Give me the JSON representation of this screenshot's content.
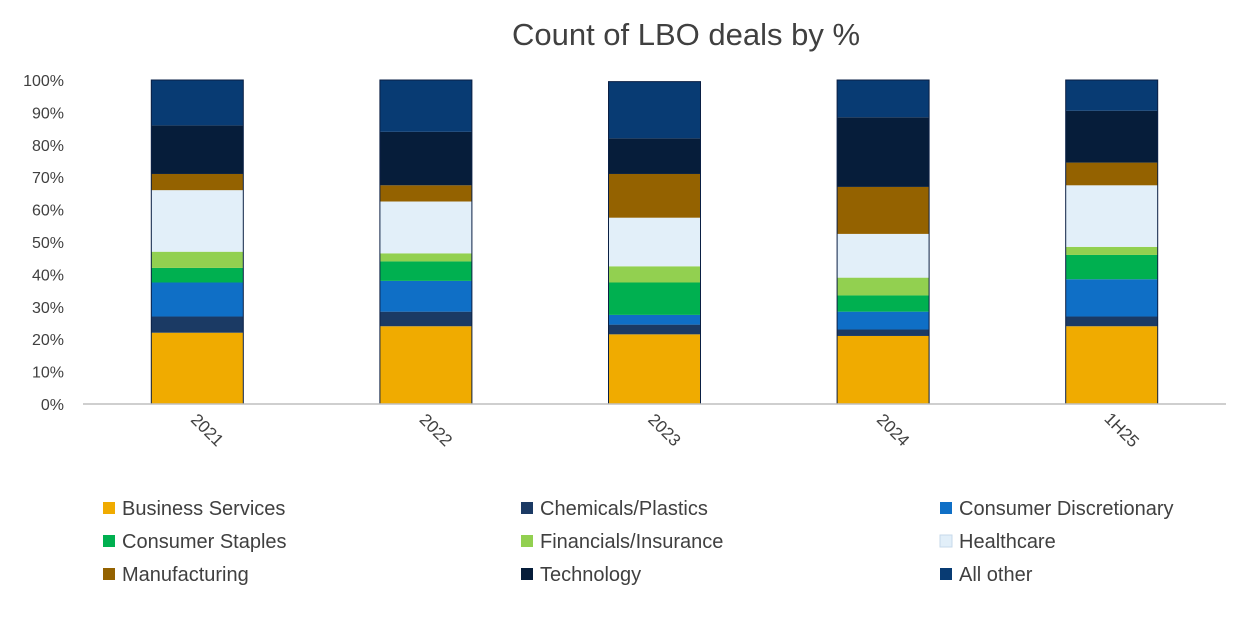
{
  "chart_data": {
    "type": "bar",
    "stacked": true,
    "title": "Count of LBO deals by %",
    "xlabel": "",
    "ylabel": "",
    "ylim": [
      0,
      100
    ],
    "yticks": [
      0,
      10,
      20,
      30,
      40,
      50,
      60,
      70,
      80,
      90,
      100
    ],
    "ytick_labels": [
      "0%",
      "10%",
      "20%",
      "30%",
      "40%",
      "50%",
      "60%",
      "70%",
      "80%",
      "90%",
      "100%"
    ],
    "categories": [
      "2021",
      "2022",
      "2023",
      "2024",
      "1H25"
    ],
    "legend_position": "bottom",
    "series": [
      {
        "name": "Business Services",
        "color": "#F0AB00",
        "values": [
          22,
          24,
          21.5,
          21,
          24
        ]
      },
      {
        "name": "Chemicals/Plastics",
        "color": "#1B3A64",
        "values": [
          5,
          4.5,
          3,
          2,
          3
        ]
      },
      {
        "name": "Consumer Discretionary",
        "color": "#0F6FC6",
        "values": [
          10.5,
          9.5,
          3,
          5.5,
          11.5
        ]
      },
      {
        "name": "Consumer Staples",
        "color": "#00B050",
        "values": [
          4.5,
          6,
          10,
          5,
          7.5
        ]
      },
      {
        "name": "Financials/Insurance",
        "color": "#92D050",
        "values": [
          5,
          2.5,
          5,
          5.5,
          2.5
        ]
      },
      {
        "name": "Healthcare",
        "color": "#E2EFF9",
        "values": [
          19,
          16,
          15,
          13.5,
          19
        ]
      },
      {
        "name": "Manufacturing",
        "color": "#946200",
        "values": [
          5,
          5,
          13.5,
          14.5,
          7
        ]
      },
      {
        "name": "Technology",
        "color": "#061D3A",
        "values": [
          15,
          16.5,
          11,
          21.5,
          16
        ]
      },
      {
        "name": "All other",
        "color": "#083B73",
        "values": [
          14,
          16,
          17.5,
          11.5,
          9.5
        ]
      }
    ]
  }
}
